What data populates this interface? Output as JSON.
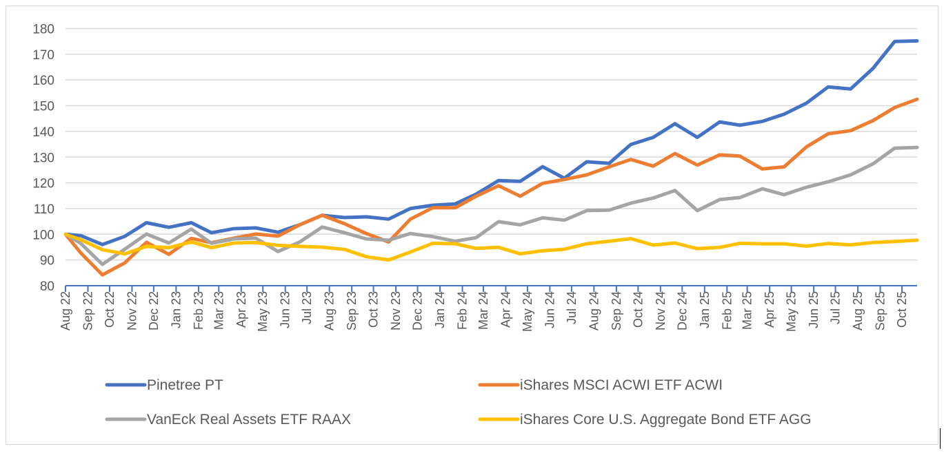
{
  "chart_data": {
    "type": "line",
    "title": "",
    "xlabel": "",
    "ylabel": "",
    "ylim": [
      80,
      180
    ],
    "yticks": [
      80,
      90,
      100,
      110,
      120,
      130,
      140,
      150,
      160,
      170,
      180
    ],
    "grid": "horizontal",
    "legend_position": "bottom",
    "x_axis_start_date": "2022-08-10",
    "x_axis_end_date": "2025-10-31",
    "x_tick_labels": [
      "Aug 22",
      "Sep 22",
      "Oct 22",
      "Nov 22",
      "Dec 22",
      "Jan 23",
      "Feb 23",
      "Mar 23",
      "Apr 23",
      "May 23",
      "Jun 23",
      "Jul 23",
      "Aug 23",
      "Sep 23",
      "Oct 23",
      "Nov 23",
      "Dec 23",
      "Jan 24",
      "Feb 24",
      "Mar 24",
      "Apr 24",
      "May 24",
      "Jun 24",
      "Jul 24",
      "Aug 24",
      "Sep 24",
      "Oct 24",
      "Nov 24",
      "Dec 24",
      "Jan 25",
      "Feb 25",
      "Mar 25",
      "Apr 25",
      "May 25",
      "Jun 25",
      "Jul 25",
      "Aug 25",
      "Sep 25",
      "Oct 25"
    ],
    "x": [
      "2022-08-10",
      "2022-08-31",
      "2022-09-30",
      "2022-10-31",
      "2022-11-30",
      "2022-12-31",
      "2023-01-31",
      "2023-02-28",
      "2023-03-31",
      "2023-04-30",
      "2023-05-31",
      "2023-06-30",
      "2023-07-31",
      "2023-08-31",
      "2023-09-30",
      "2023-10-31",
      "2023-11-30",
      "2023-12-31",
      "2024-01-31",
      "2024-02-29",
      "2024-03-31",
      "2024-04-30",
      "2024-05-31",
      "2024-06-30",
      "2024-07-31",
      "2024-08-31",
      "2024-09-30",
      "2024-10-31",
      "2024-11-30",
      "2024-12-31",
      "2025-01-31",
      "2025-02-28",
      "2025-03-31",
      "2025-04-30",
      "2025-05-31",
      "2025-06-30",
      "2025-07-31",
      "2025-08-31",
      "2025-09-30",
      "2025-10-31"
    ],
    "series": [
      {
        "name": "Pinetree PT",
        "color": "#4472C4",
        "values": [
          100,
          99.5,
          96,
          99.2,
          104.5,
          102.7,
          104.5,
          100.6,
          102.2,
          102.5,
          100.8,
          103.7,
          107.4,
          106.5,
          106.8,
          105.9,
          110,
          111.3,
          111.8,
          115.6,
          120.9,
          120.6,
          126.3,
          121.8,
          128.2,
          127.6,
          134.9,
          137.7,
          143,
          137.7,
          143.7,
          142.4,
          143.9,
          146.7,
          151,
          157.3,
          156.5,
          164.5,
          175,
          175.2
        ]
      },
      {
        "name": "iShares MSCI ACWI ETF ACWI",
        "color": "#ED7D31",
        "values": [
          100,
          92.8,
          84.2,
          88.9,
          96.9,
          92.2,
          98.4,
          96.7,
          98.5,
          100.1,
          99.3,
          103.7,
          107.4,
          104.1,
          100.3,
          97,
          105.9,
          110.3,
          110.3,
          114.8,
          118.9,
          114.8,
          119.8,
          121.3,
          123.1,
          126.2,
          129.1,
          126.5,
          131.4,
          126.9,
          130.9,
          130.4,
          125.4,
          126.2,
          134,
          139.1,
          140.3,
          144.2,
          149.3,
          152.5
        ]
      },
      {
        "name": "VanEck Real Assets ETF RAAX",
        "color": "#A5A5A5",
        "values": [
          100,
          96.5,
          88.3,
          94.2,
          100.1,
          96.6,
          102,
          96.5,
          98.2,
          98.5,
          93.3,
          97,
          102.8,
          100.6,
          98.2,
          97.7,
          100.3,
          99.1,
          97.3,
          98.7,
          104.9,
          103.7,
          106.4,
          105.5,
          109.2,
          109.4,
          112.1,
          114.1,
          117,
          109.2,
          113.5,
          114.3,
          117.7,
          115.4,
          118.3,
          120.4,
          123.1,
          127.4,
          133.5,
          133.8
        ]
      },
      {
        "name": "iShares Core U.S. Aggregate Bond ETF AGG",
        "color": "#FFC000",
        "values": [
          100,
          97.9,
          94,
          92.4,
          95.3,
          94.8,
          97,
          94.8,
          96.6,
          96.8,
          95.7,
          95.3,
          95,
          94.1,
          91.3,
          90,
          93.1,
          96.5,
          96.3,
          94.5,
          94.9,
          92.4,
          93.6,
          94.2,
          96.3,
          97.3,
          98.3,
          95.8,
          96.6,
          94.4,
          94.9,
          96.5,
          96.3,
          96.3,
          95.4,
          96.4,
          95.9,
          96.8,
          97.2,
          97.7
        ]
      }
    ]
  },
  "colors": {
    "gridline": "#d9d9d9",
    "axis": "#4472C4",
    "text": "#595959"
  }
}
